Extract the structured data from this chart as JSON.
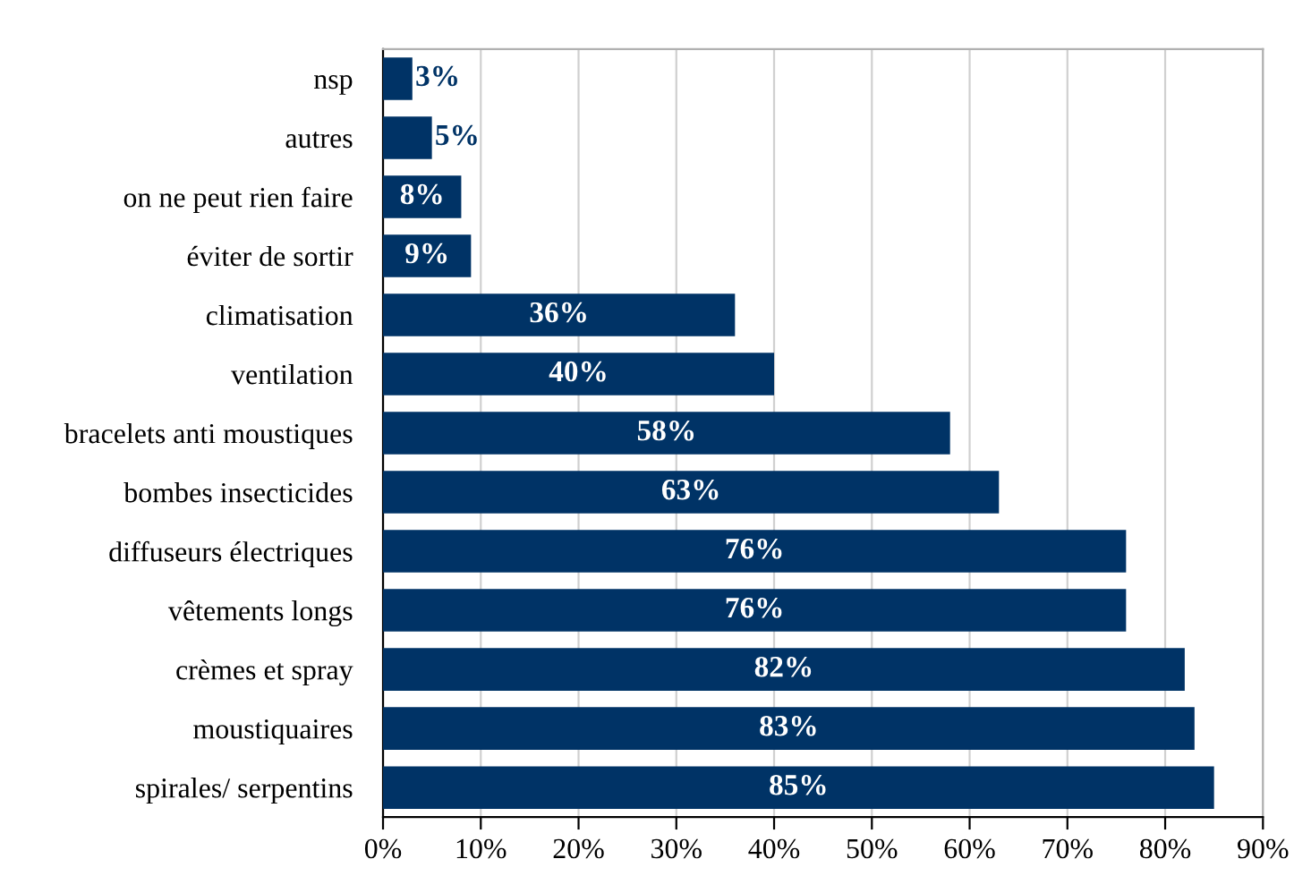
{
  "chart_data": {
    "type": "bar",
    "orientation": "horizontal",
    "categories": [
      "nsp",
      "autres",
      "on ne peut rien faire",
      "éviter de sortir",
      "climatisation",
      "ventilation",
      "bracelets anti moustiques",
      "bombes insecticides",
      "diffuseurs électriques",
      "vêtements longs",
      "crèmes et spray",
      "moustiquaires",
      "spirales/ serpentins"
    ],
    "values": [
      3,
      5,
      8,
      9,
      36,
      40,
      58,
      63,
      76,
      76,
      82,
      83,
      85
    ],
    "value_labels": [
      "3%",
      "5%",
      "8%",
      "9%",
      "36%",
      "40%",
      "58%",
      "63%",
      "76%",
      "76%",
      "82%",
      "83%",
      "85%"
    ],
    "color": "#003366",
    "xlim": [
      0,
      90
    ],
    "xticks": [
      {
        "value": 0,
        "label": "0%"
      },
      {
        "value": 10,
        "label": "10%"
      },
      {
        "value": 20,
        "label": "20%"
      },
      {
        "value": 30,
        "label": "30%"
      },
      {
        "value": 40,
        "label": "40%"
      },
      {
        "value": 50,
        "label": "50%"
      },
      {
        "value": 60,
        "label": "60%"
      },
      {
        "value": 70,
        "label": "70%"
      },
      {
        "value": 80,
        "label": "80%"
      },
      {
        "value": 90,
        "label": "90%"
      }
    ],
    "grid": "x"
  }
}
